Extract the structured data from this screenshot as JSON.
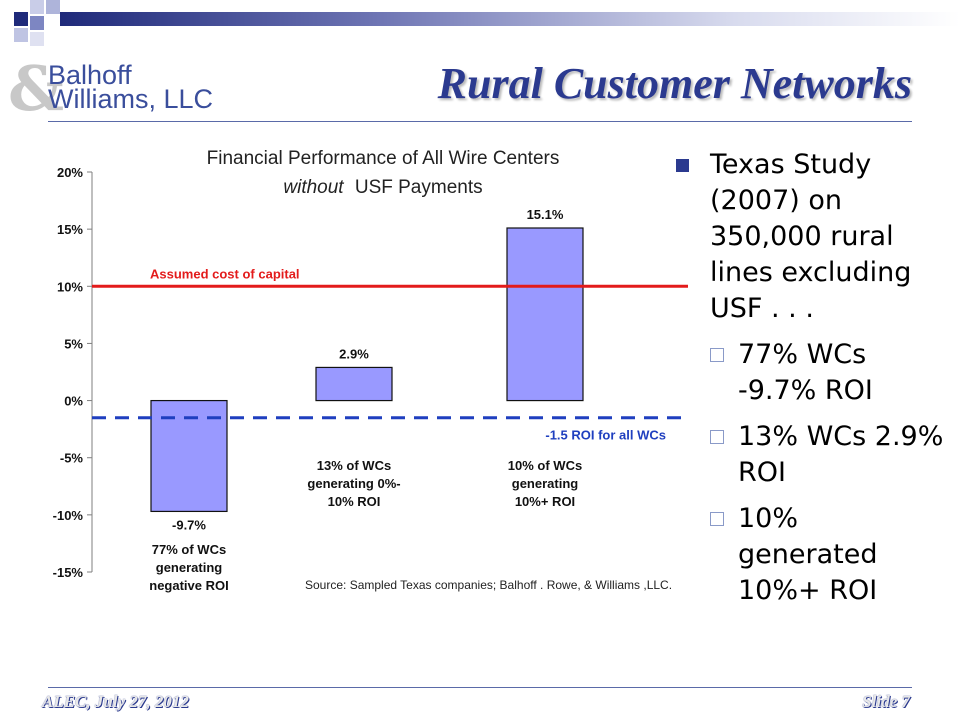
{
  "header": {
    "logo_line1": "Balhoff",
    "logo_line2": "Williams, LLC",
    "logo_ampersand": "&",
    "title": "Rural Customer Networks"
  },
  "bullets": {
    "main": "Texas Study (2007) on 350,000 rural lines excluding USF . . .",
    "sub": [
      "77% WCs -9.7% ROI",
      "13% WCs 2.9% ROI",
      "10% generated 10%+ ROI"
    ]
  },
  "footer": {
    "left": "ALEC, July 27, 2012",
    "right": "Slide 7"
  },
  "colors": {
    "title": "#2b3a8f",
    "bar_fill": "#9999ff",
    "cost_line": "#e31b1b",
    "roi_line": "#1f3fbf",
    "footer_text": "#2b3a8f"
  },
  "chart_data": {
    "type": "bar",
    "title_line1": "Financial Performance of All Wire Centers",
    "title_line2_italic": "without",
    "title_line2_rest": "USF Payments",
    "categories": [
      "77% of WCs generating negative ROI",
      "13% of WCs generating 0%- 10% ROI",
      "10% of WCs generating 10%+ ROI"
    ],
    "category_label_lines": [
      [
        "77% of WCs",
        "generating",
        "negative ROI"
      ],
      [
        "13% of WCs",
        "generating 0%-",
        "10% ROI"
      ],
      [
        "10% of WCs",
        "generating",
        "10%+ ROI"
      ]
    ],
    "values": [
      -9.7,
      2.9,
      15.1
    ],
    "value_labels": [
      "-9.7%",
      "2.9%",
      "15.1%"
    ],
    "ylim": [
      -15,
      20
    ],
    "yticks": [
      20,
      15,
      10,
      5,
      0,
      -5,
      -10,
      -15
    ],
    "ytick_labels": [
      "20%",
      "15%",
      "10%",
      "5%",
      "0%",
      "-5%",
      "-10%",
      "-15%"
    ],
    "reference_lines": [
      {
        "value": 10,
        "label": "Assumed cost of capital",
        "style": "solid"
      },
      {
        "value": -1.5,
        "label": "-1.5 ROI for all WCs",
        "style": "dashed"
      }
    ],
    "source": "Source: Sampled Texas  companies; Balhoff . Rowe, & Williams ,LLC.",
    "grid": false
  }
}
